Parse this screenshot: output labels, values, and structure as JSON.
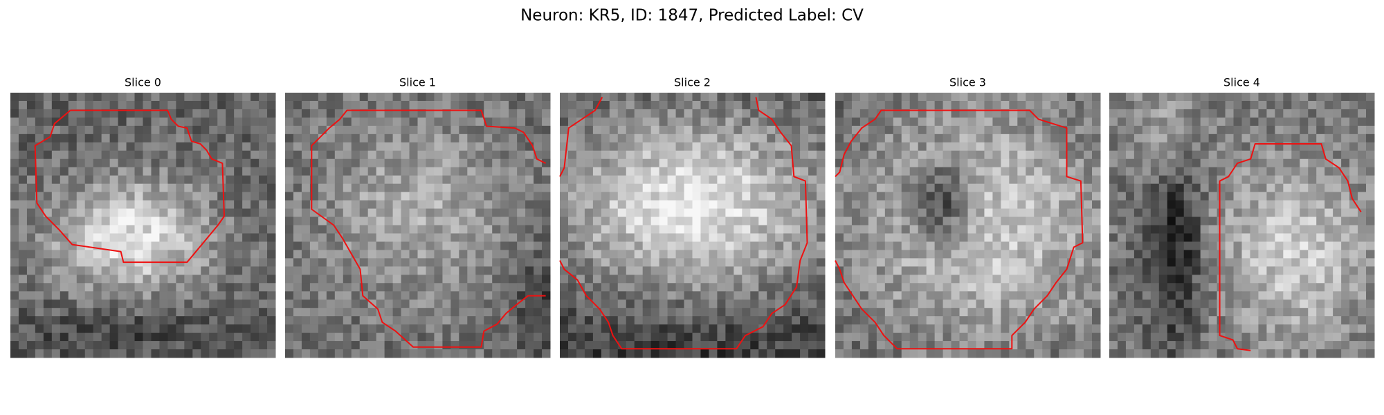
{
  "figure": {
    "title": "Neuron: KR5, ID: 1847, Predicted Label: CV",
    "panels": [
      {
        "title": "Slice 0"
      },
      {
        "title": "Slice 1"
      },
      {
        "title": "Slice 2"
      },
      {
        "title": "Slice 3"
      },
      {
        "title": "Slice 4"
      }
    ]
  }
}
